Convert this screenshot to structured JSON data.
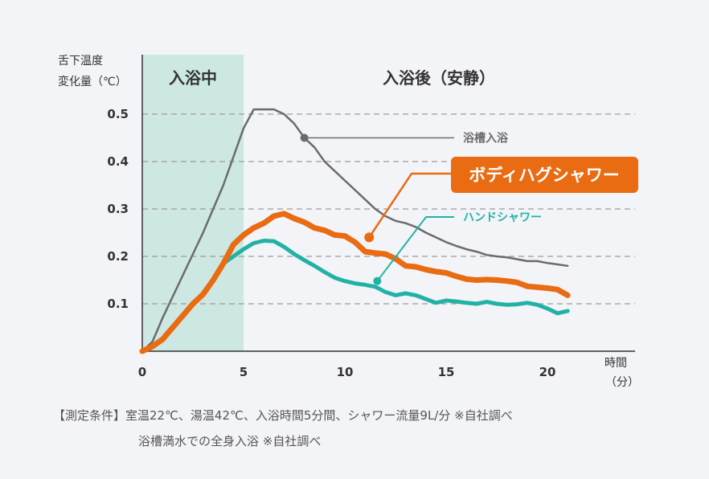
{
  "chart_data": {
    "type": "line",
    "ylabel": "舌下温度\n変化量（℃）",
    "xlabel": "時間\n（分）",
    "xlim": [
      0,
      23
    ],
    "ylim": [
      0,
      0.6
    ],
    "xticks": [
      "0",
      "5",
      "10",
      "15",
      "20"
    ],
    "xtick_values": [
      0,
      5,
      10,
      15,
      20
    ],
    "yticks": [
      "0.1",
      "0.2",
      "0.3",
      "0.4",
      "0.5"
    ],
    "ytick_values": [
      0.1,
      0.2,
      0.3,
      0.4,
      0.5
    ],
    "zones": [
      {
        "label": "入浴中",
        "x_start": 0,
        "x_end": 5,
        "color": "#cde8e2"
      },
      {
        "label": "入浴後（安静）",
        "x_start": 5,
        "x_end": 23
      }
    ],
    "series": [
      {
        "name": "浴槽入浴",
        "color": "#6b6b6b",
        "marker": {
          "x": 8,
          "y": 0.45
        },
        "label_pos": [
          11.5,
          0.45
        ],
        "x": [
          0,
          0.5,
          1,
          2,
          3,
          4,
          5,
          5.5,
          6,
          6.5,
          7,
          7.5,
          8,
          8.5,
          9,
          9.5,
          10,
          10.5,
          11,
          11.5,
          12,
          12.5,
          13,
          13.5,
          14,
          14.5,
          15,
          15.5,
          16,
          16.5,
          17,
          17.5,
          18,
          18.5,
          19,
          19.5,
          20,
          20.5,
          21
        ],
        "y": [
          0,
          0.02,
          0.07,
          0.16,
          0.25,
          0.35,
          0.47,
          0.51,
          0.51,
          0.51,
          0.5,
          0.48,
          0.45,
          0.43,
          0.4,
          0.38,
          0.36,
          0.34,
          0.32,
          0.3,
          0.285,
          0.275,
          0.27,
          0.262,
          0.25,
          0.24,
          0.23,
          0.222,
          0.215,
          0.21,
          0.203,
          0.2,
          0.198,
          0.194,
          0.19,
          0.19,
          0.186,
          0.183,
          0.18
        ]
      },
      {
        "name": "ボディハグシャワー",
        "color": "#e96b12",
        "marker": {
          "x": 11.2,
          "y": 0.24
        },
        "callout": true,
        "x": [
          0,
          0.5,
          1,
          1.5,
          2,
          2.5,
          3,
          3.5,
          4,
          4.5,
          5,
          5.5,
          6,
          6.5,
          7,
          7.5,
          8,
          8.5,
          9,
          9.5,
          10,
          10.5,
          11,
          11.5,
          12,
          12.5,
          13,
          13.5,
          14,
          14.5,
          15,
          15.5,
          16,
          16.5,
          17,
          17.5,
          18,
          18.5,
          19,
          19.5,
          20,
          20.5,
          21
        ],
        "y": [
          0,
          0.01,
          0.025,
          0.05,
          0.075,
          0.1,
          0.12,
          0.15,
          0.185,
          0.225,
          0.245,
          0.26,
          0.27,
          0.285,
          0.29,
          0.28,
          0.272,
          0.26,
          0.255,
          0.245,
          0.243,
          0.23,
          0.21,
          0.207,
          0.205,
          0.195,
          0.18,
          0.178,
          0.172,
          0.168,
          0.165,
          0.158,
          0.152,
          0.15,
          0.151,
          0.15,
          0.148,
          0.145,
          0.137,
          0.135,
          0.133,
          0.13,
          0.118
        ]
      },
      {
        "name": "ハンドシャワー",
        "color": "#22b2a5",
        "marker": {
          "x": 11.6,
          "y": 0.148
        },
        "label_pos": [
          15,
          0.28
        ],
        "x": [
          4,
          4.5,
          5,
          5.5,
          6,
          6.5,
          7,
          7.5,
          8,
          8.5,
          9,
          9.5,
          10,
          10.5,
          11,
          11.5,
          12,
          12.5,
          13,
          13.5,
          14,
          14.5,
          15,
          15.5,
          16,
          16.5,
          17,
          17.5,
          18,
          18.5,
          19,
          19.5,
          20,
          20.5,
          21
        ],
        "y": [
          0.185,
          0.2,
          0.215,
          0.228,
          0.233,
          0.232,
          0.22,
          0.205,
          0.192,
          0.18,
          0.167,
          0.155,
          0.148,
          0.143,
          0.14,
          0.136,
          0.125,
          0.118,
          0.122,
          0.118,
          0.11,
          0.102,
          0.107,
          0.105,
          0.102,
          0.1,
          0.104,
          0.1,
          0.098,
          0.099,
          0.102,
          0.098,
          0.09,
          0.08,
          0.085
        ]
      }
    ]
  },
  "notes": {
    "line1": "【測定条件】室温22℃、湯温42℃、入浴時間5分間、シャワー流量9L/分 ※自社調べ",
    "line2": "浴槽満水での全身入浴 ※自社調べ"
  }
}
